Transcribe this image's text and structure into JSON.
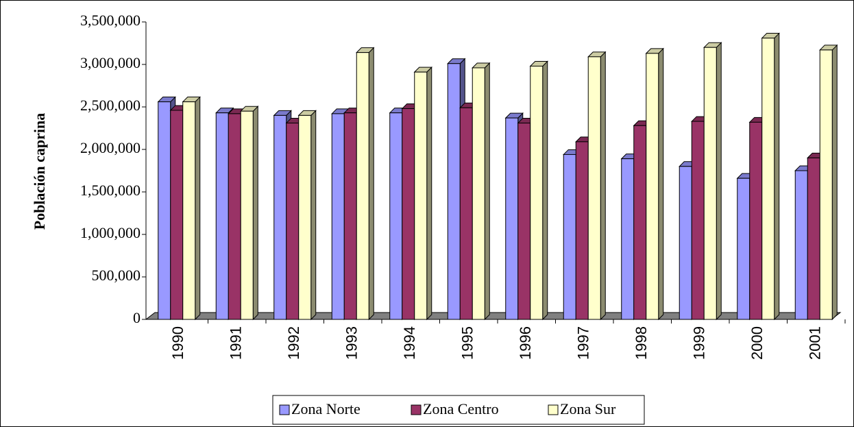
{
  "chart_data": {
    "type": "bar3d",
    "y_label": "Población caprina",
    "categories": [
      "1990",
      "1991",
      "1992",
      "1993",
      "1994",
      "1995",
      "1996",
      "1997",
      "1998",
      "1999",
      "2000",
      "2001"
    ],
    "series": [
      {
        "name": "Zona Norte",
        "color": "#9999ff",
        "values": [
          2560000,
          2430000,
          2400000,
          2420000,
          2430000,
          3010000,
          2370000,
          1940000,
          1890000,
          1800000,
          1660000,
          1750000
        ]
      },
      {
        "name": "Zona Centro",
        "color": "#993366",
        "values": [
          2460000,
          2420000,
          2310000,
          2430000,
          2480000,
          2490000,
          2310000,
          2090000,
          2280000,
          2330000,
          2320000,
          1900000
        ]
      },
      {
        "name": "Zona Sur",
        "color": "#ffffcc",
        "values": [
          2560000,
          2450000,
          2400000,
          3140000,
          2910000,
          2960000,
          2980000,
          3090000,
          3130000,
          3200000,
          3310000,
          3170000
        ]
      }
    ],
    "ylim": [
      0,
      3500000
    ],
    "yticks": [
      0,
      {
        "value": 500000,
        "label": "500,000"
      },
      {
        "value": 1000000,
        "label": "1,000,000"
      },
      {
        "value": 1500000,
        "label": "1,500,000"
      },
      {
        "value": 2000000,
        "label": "2,000,000"
      },
      {
        "value": 2500000,
        "label": "2,500,000"
      },
      {
        "value": 3000000,
        "label": "3,000,000"
      },
      {
        "value": 3500000,
        "label": "3,500,000"
      }
    ],
    "legend": "bottom"
  }
}
